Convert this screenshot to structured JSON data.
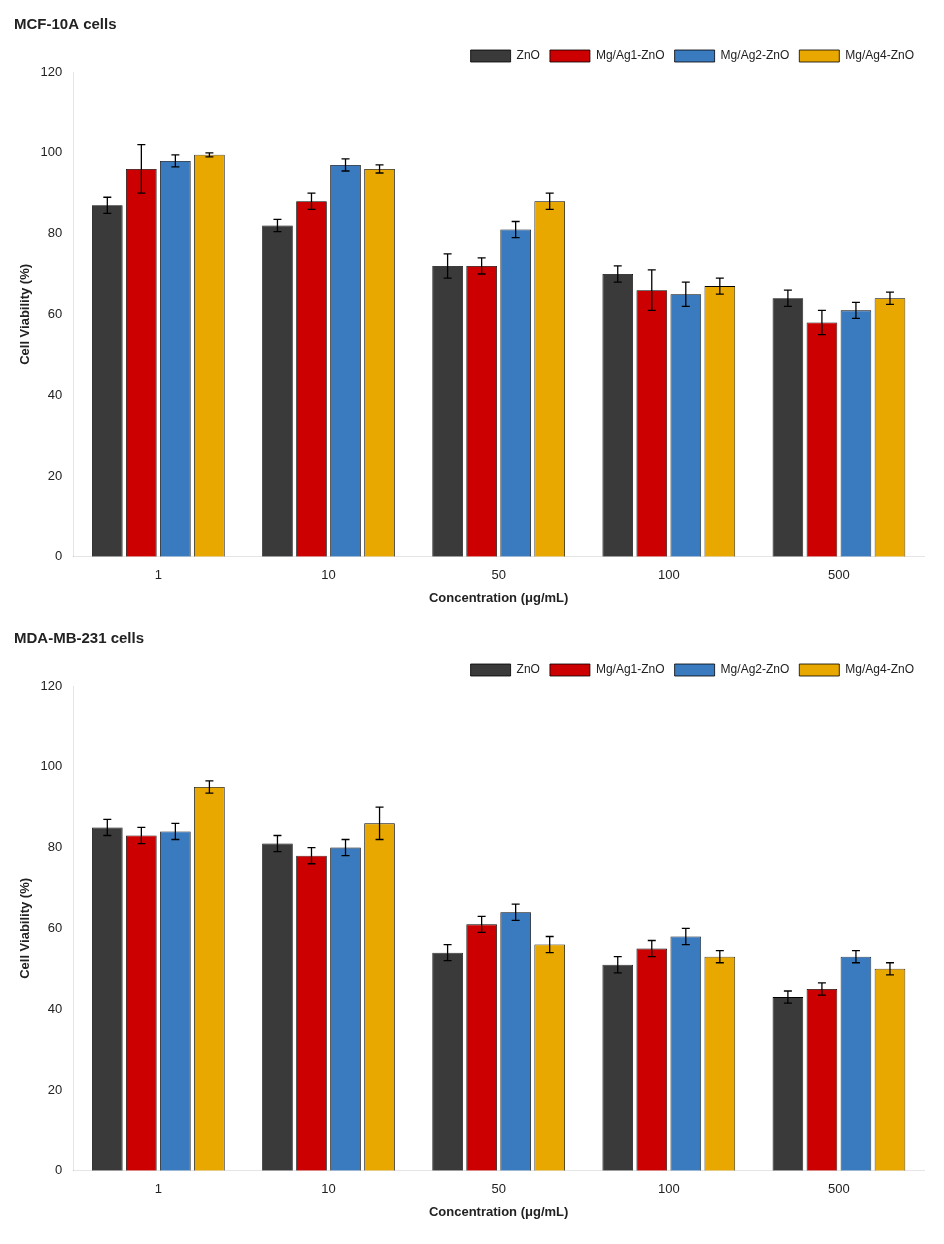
{
  "chart_data": [
    {
      "type": "bar",
      "title": "MCF-10A cells",
      "categories": [
        "1",
        "10",
        "50",
        "100",
        "500"
      ],
      "series": [
        {
          "name": "ZnO",
          "color": "#3a3a3a",
          "values": [
            87,
            82,
            72,
            70,
            64
          ],
          "errors": [
            2,
            1.5,
            3,
            2,
            2
          ]
        },
        {
          "name": "Mg/Ag1-ZnO",
          "color": "#cc0000",
          "values": [
            96,
            88,
            72,
            66,
            58
          ],
          "errors": [
            6,
            2,
            2,
            5,
            3
          ]
        },
        {
          "name": "Mg/Ag2-ZnO",
          "color": "#3a7abf",
          "values": [
            98,
            97,
            81,
            65,
            61
          ],
          "errors": [
            1.5,
            1.5,
            2,
            3,
            2
          ]
        },
        {
          "name": "Mg/Ag4-ZnO",
          "color": "#e8a800",
          "values": [
            99.5,
            96,
            88,
            67,
            64
          ],
          "errors": [
            0.5,
            1,
            2,
            2,
            1.5
          ]
        }
      ],
      "xlabel": "Concentration (μg/mL)",
      "ylabel": "Cell Viability (%)",
      "ylim": [
        0,
        120
      ],
      "yticks": [
        0,
        20,
        40,
        60,
        80,
        100,
        120
      ],
      "grid": false,
      "legend": "upper right"
    },
    {
      "type": "bar",
      "title": "MDA-MB-231 cells",
      "categories": [
        "1",
        "10",
        "50",
        "100",
        "500"
      ],
      "series": [
        {
          "name": "ZnO",
          "color": "#3a3a3a",
          "values": [
            85,
            81,
            54,
            51,
            43
          ],
          "errors": [
            2,
            2,
            2,
            2,
            1.5
          ]
        },
        {
          "name": "Mg/Ag1-ZnO",
          "color": "#cc0000",
          "values": [
            83,
            78,
            61,
            55,
            45
          ],
          "errors": [
            2,
            2,
            2,
            2,
            1.5
          ]
        },
        {
          "name": "Mg/Ag2-ZnO",
          "color": "#3a7abf",
          "values": [
            84,
            80,
            64,
            58,
            53
          ],
          "errors": [
            2,
            2,
            2,
            2,
            1.5
          ]
        },
        {
          "name": "Mg/Ag4-ZnO",
          "color": "#e8a800",
          "values": [
            95,
            86,
            56,
            53,
            50
          ],
          "errors": [
            1.5,
            4,
            2,
            1.5,
            1.5
          ]
        }
      ],
      "xlabel": "Concentration (μg/mL)",
      "ylabel": "Cell Viability (%)",
      "ylim": [
        0,
        120
      ],
      "yticks": [
        0,
        20,
        40,
        60,
        80,
        100,
        120
      ],
      "grid": false,
      "legend": "upper right"
    }
  ]
}
